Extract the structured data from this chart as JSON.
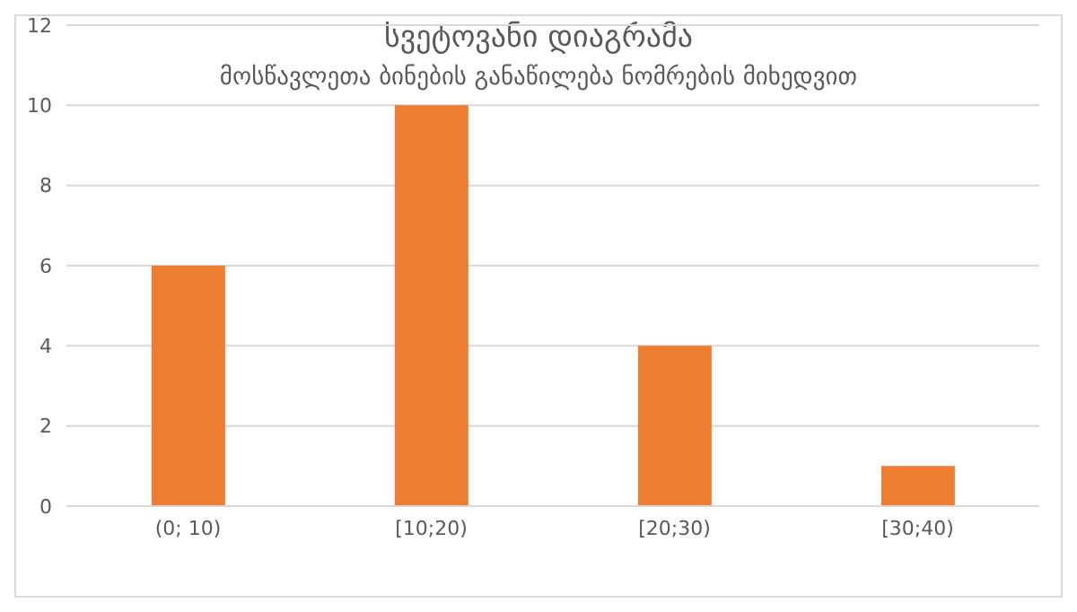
{
  "chart_data": {
    "type": "bar",
    "title": "სვეტოვანი დიაგრამა",
    "subtitle": "მოსწავლეთა ბინების განაწილება ნომრების მიხედვით",
    "categories": [
      "(0; 10)",
      "[10;20)",
      "[20;30)",
      "[30;40)"
    ],
    "values": [
      6,
      10,
      4,
      1
    ],
    "color": "#ed7d31",
    "ylim": [
      0,
      12
    ],
    "yticks": [
      0,
      2,
      4,
      6,
      8,
      10,
      12
    ],
    "grid": "y"
  }
}
